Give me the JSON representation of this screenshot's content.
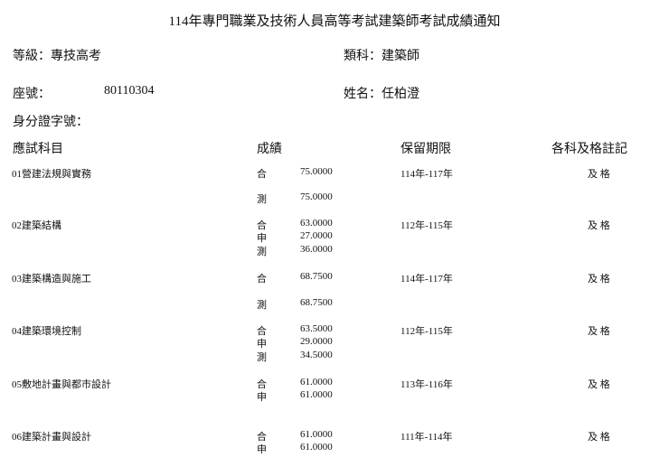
{
  "title": "114年專門職業及技術人員高等考試建築師考試成績通知",
  "info": {
    "level": "等級：專技高考",
    "category": "類科：建築師",
    "seat_label": "座號：",
    "seat_number": "80110304",
    "name": "姓名：任柏澄",
    "id_label": "身分證字號："
  },
  "headers": {
    "subject": "應試科目",
    "score": "成績",
    "retention": "保留期限",
    "pass_note": "各科及格註記"
  },
  "subjects": [
    {
      "name": "01營建法規與實務",
      "scores": [
        {
          "type": "合",
          "value": "75.0000"
        },
        {
          "type": "測",
          "value": "75.0000"
        }
      ],
      "retention": "114年-117年",
      "pass": "及 格"
    },
    {
      "name": "02建築結構",
      "scores": [
        {
          "type": "合",
          "value": "63.0000"
        },
        {
          "type": "申",
          "value": "27.0000"
        },
        {
          "type": "測",
          "value": "36.0000"
        }
      ],
      "retention": "112年-115年",
      "pass": "及 格"
    },
    {
      "name": "03建築構造與施工",
      "scores": [
        {
          "type": "合",
          "value": "68.7500"
        },
        {
          "type": "測",
          "value": "68.7500"
        }
      ],
      "retention": "114年-117年",
      "pass": "及 格"
    },
    {
      "name": "04建築環境控制",
      "scores": [
        {
          "type": "合",
          "value": "63.5000"
        },
        {
          "type": "申",
          "value": "29.0000"
        },
        {
          "type": "測",
          "value": "34.5000"
        }
      ],
      "retention": "112年-115年",
      "pass": "及 格"
    },
    {
      "name": "05敷地計畫與都市設計",
      "scores": [
        {
          "type": "合",
          "value": "61.0000"
        },
        {
          "type": "申",
          "value": "61.0000"
        }
      ],
      "retention": "113年-116年",
      "pass": "及 格"
    },
    {
      "name": "06建築計畫與設計",
      "scores": [
        {
          "type": "合",
          "value": "61.0000"
        },
        {
          "type": "申",
          "value": "61.0000"
        }
      ],
      "retention": "111年-114年",
      "pass": "及 格"
    }
  ]
}
